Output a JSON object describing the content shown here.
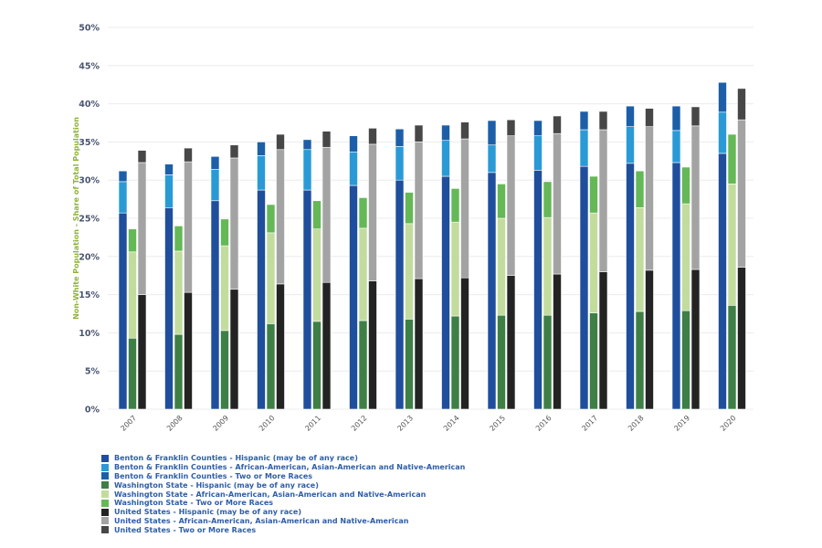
{
  "chart_data": {
    "type": "bar",
    "stacked": true,
    "grouped": true,
    "title": "",
    "xlabel": "",
    "ylabel": "Non-White Population - Share of Total Population",
    "ylim": [
      0,
      50
    ],
    "yticks": [
      "0%",
      "5%",
      "10%",
      "15%",
      "20%",
      "25%",
      "30%",
      "35%",
      "40%",
      "45%",
      "50%"
    ],
    "grid": true,
    "legend_position": "bottom-left",
    "categories": [
      "2007",
      "2008",
      "2009",
      "2010",
      "2011",
      "2012",
      "2013",
      "2014",
      "2015",
      "2016",
      "2017",
      "2018",
      "2019",
      "2020"
    ],
    "groups": [
      "Benton & Franklin Counties",
      "Washington State",
      "United States"
    ],
    "series": [
      {
        "name": "Benton & Franklin Counties - Hispanic (may be of any race)",
        "group": "Benton & Franklin Counties",
        "color": "#1f4e9c",
        "values": [
          25.7,
          26.4,
          27.3,
          28.7,
          28.7,
          29.3,
          30.0,
          30.5,
          31.0,
          31.3,
          31.8,
          32.2,
          32.3,
          33.5
        ]
      },
      {
        "name": "Benton & Franklin Counties - African-American, Asian-American and Native-American",
        "group": "Benton & Franklin Counties",
        "color": "#2a9ad6",
        "values": [
          4.1,
          4.3,
          4.1,
          4.5,
          5.3,
          4.4,
          4.4,
          4.7,
          3.6,
          4.5,
          4.8,
          4.8,
          4.2,
          5.4
        ]
      },
      {
        "name": "Benton & Franklin Counties - Two or More Races",
        "group": "Benton & Franklin Counties",
        "color": "#1c5fa8",
        "values": [
          1.4,
          1.4,
          1.7,
          1.8,
          1.3,
          2.1,
          2.3,
          2.0,
          3.2,
          2.0,
          2.4,
          2.7,
          3.2,
          3.9
        ]
      },
      {
        "name": "Washington State - Hispanic (may be of any race)",
        "group": "Washington State",
        "color": "#3e7f46",
        "values": [
          9.3,
          9.8,
          10.3,
          11.2,
          11.5,
          11.6,
          11.8,
          12.2,
          12.3,
          12.3,
          12.6,
          12.8,
          12.9,
          13.6
        ]
      },
      {
        "name": "Washington State - African-American, Asian-American and Native-American",
        "group": "Washington State",
        "color": "#c2dc9e",
        "values": [
          11.3,
          10.9,
          11.1,
          11.9,
          12.1,
          12.1,
          12.5,
          12.3,
          12.7,
          12.8,
          13.1,
          13.6,
          14.0,
          15.9
        ]
      },
      {
        "name": "Washington State - Two or More Races",
        "group": "Washington State",
        "color": "#65b856",
        "values": [
          3.0,
          3.3,
          3.5,
          3.7,
          3.7,
          4.0,
          4.1,
          4.4,
          4.5,
          4.7,
          4.8,
          4.8,
          4.8,
          6.5
        ]
      },
      {
        "name": "United States - Hispanic (may be of any race)",
        "group": "United States",
        "color": "#232323",
        "values": [
          15.0,
          15.3,
          15.7,
          16.4,
          16.6,
          16.8,
          17.1,
          17.2,
          17.5,
          17.7,
          18.0,
          18.2,
          18.3,
          18.6
        ]
      },
      {
        "name": "United States - African-American, Asian-American and Native-American",
        "group": "United States",
        "color": "#a3a3a3",
        "values": [
          17.3,
          17.1,
          17.2,
          17.6,
          17.7,
          17.9,
          17.9,
          18.2,
          18.3,
          18.4,
          18.6,
          18.8,
          18.8,
          19.3
        ]
      },
      {
        "name": "United States - Two or More Races",
        "group": "United States",
        "color": "#474747",
        "values": [
          1.6,
          1.8,
          1.7,
          2.0,
          2.1,
          2.1,
          2.2,
          2.2,
          2.1,
          2.3,
          2.4,
          2.4,
          2.5,
          4.1
        ]
      }
    ]
  }
}
